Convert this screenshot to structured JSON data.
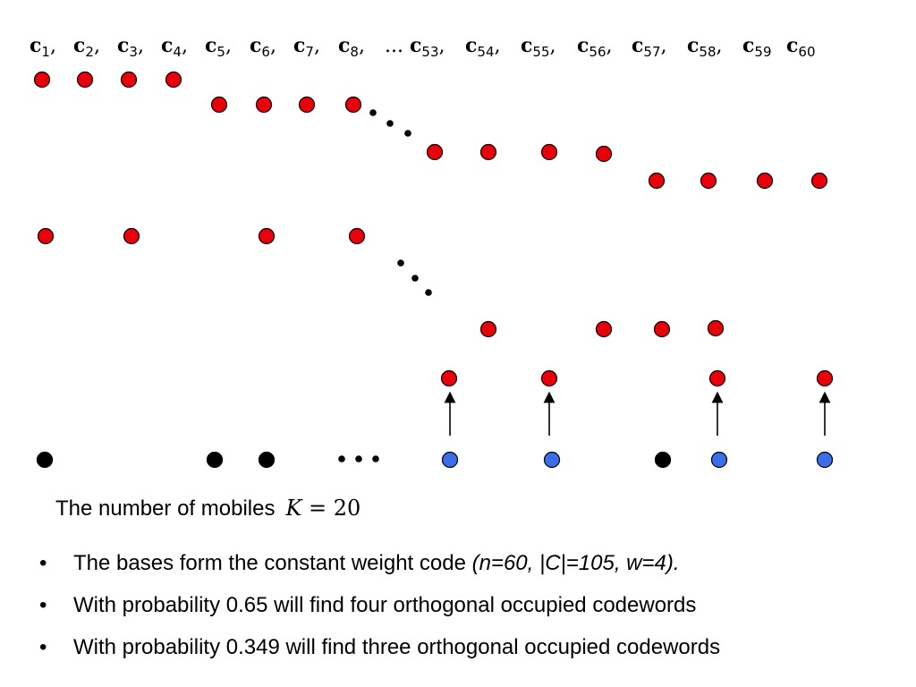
{
  "colors": {
    "occupied": "#e8000a",
    "selected_mobile": "#3a6ee8",
    "other_mobile": "#000000",
    "outline": "#000000"
  },
  "codeword_labels": [
    "c1,",
    "c2,",
    "c3,",
    "c4,",
    "c5,",
    "c6,",
    "c7,",
    "c8,",
    "...",
    "c53,",
    "c54,",
    "c55,",
    "c56,",
    "c57,",
    "c58,",
    "c59",
    "c60"
  ],
  "mobiles_caption": {
    "text": "The number of mobiles",
    "math_var": "K",
    "math_rest": " = 20"
  },
  "bullets": [
    {
      "marker": "•",
      "text": "The bases form the constant weight code ",
      "emph": "(n=60, |C|=105, w=4)."
    },
    {
      "marker": "•",
      "text": "With probability 0.65 will find four orthogonal occupied codewords",
      "emph": ""
    },
    {
      "marker": "•",
      "text": "With probability 0.349 will find three orthogonal occupied codewords",
      "emph": ""
    }
  ]
}
